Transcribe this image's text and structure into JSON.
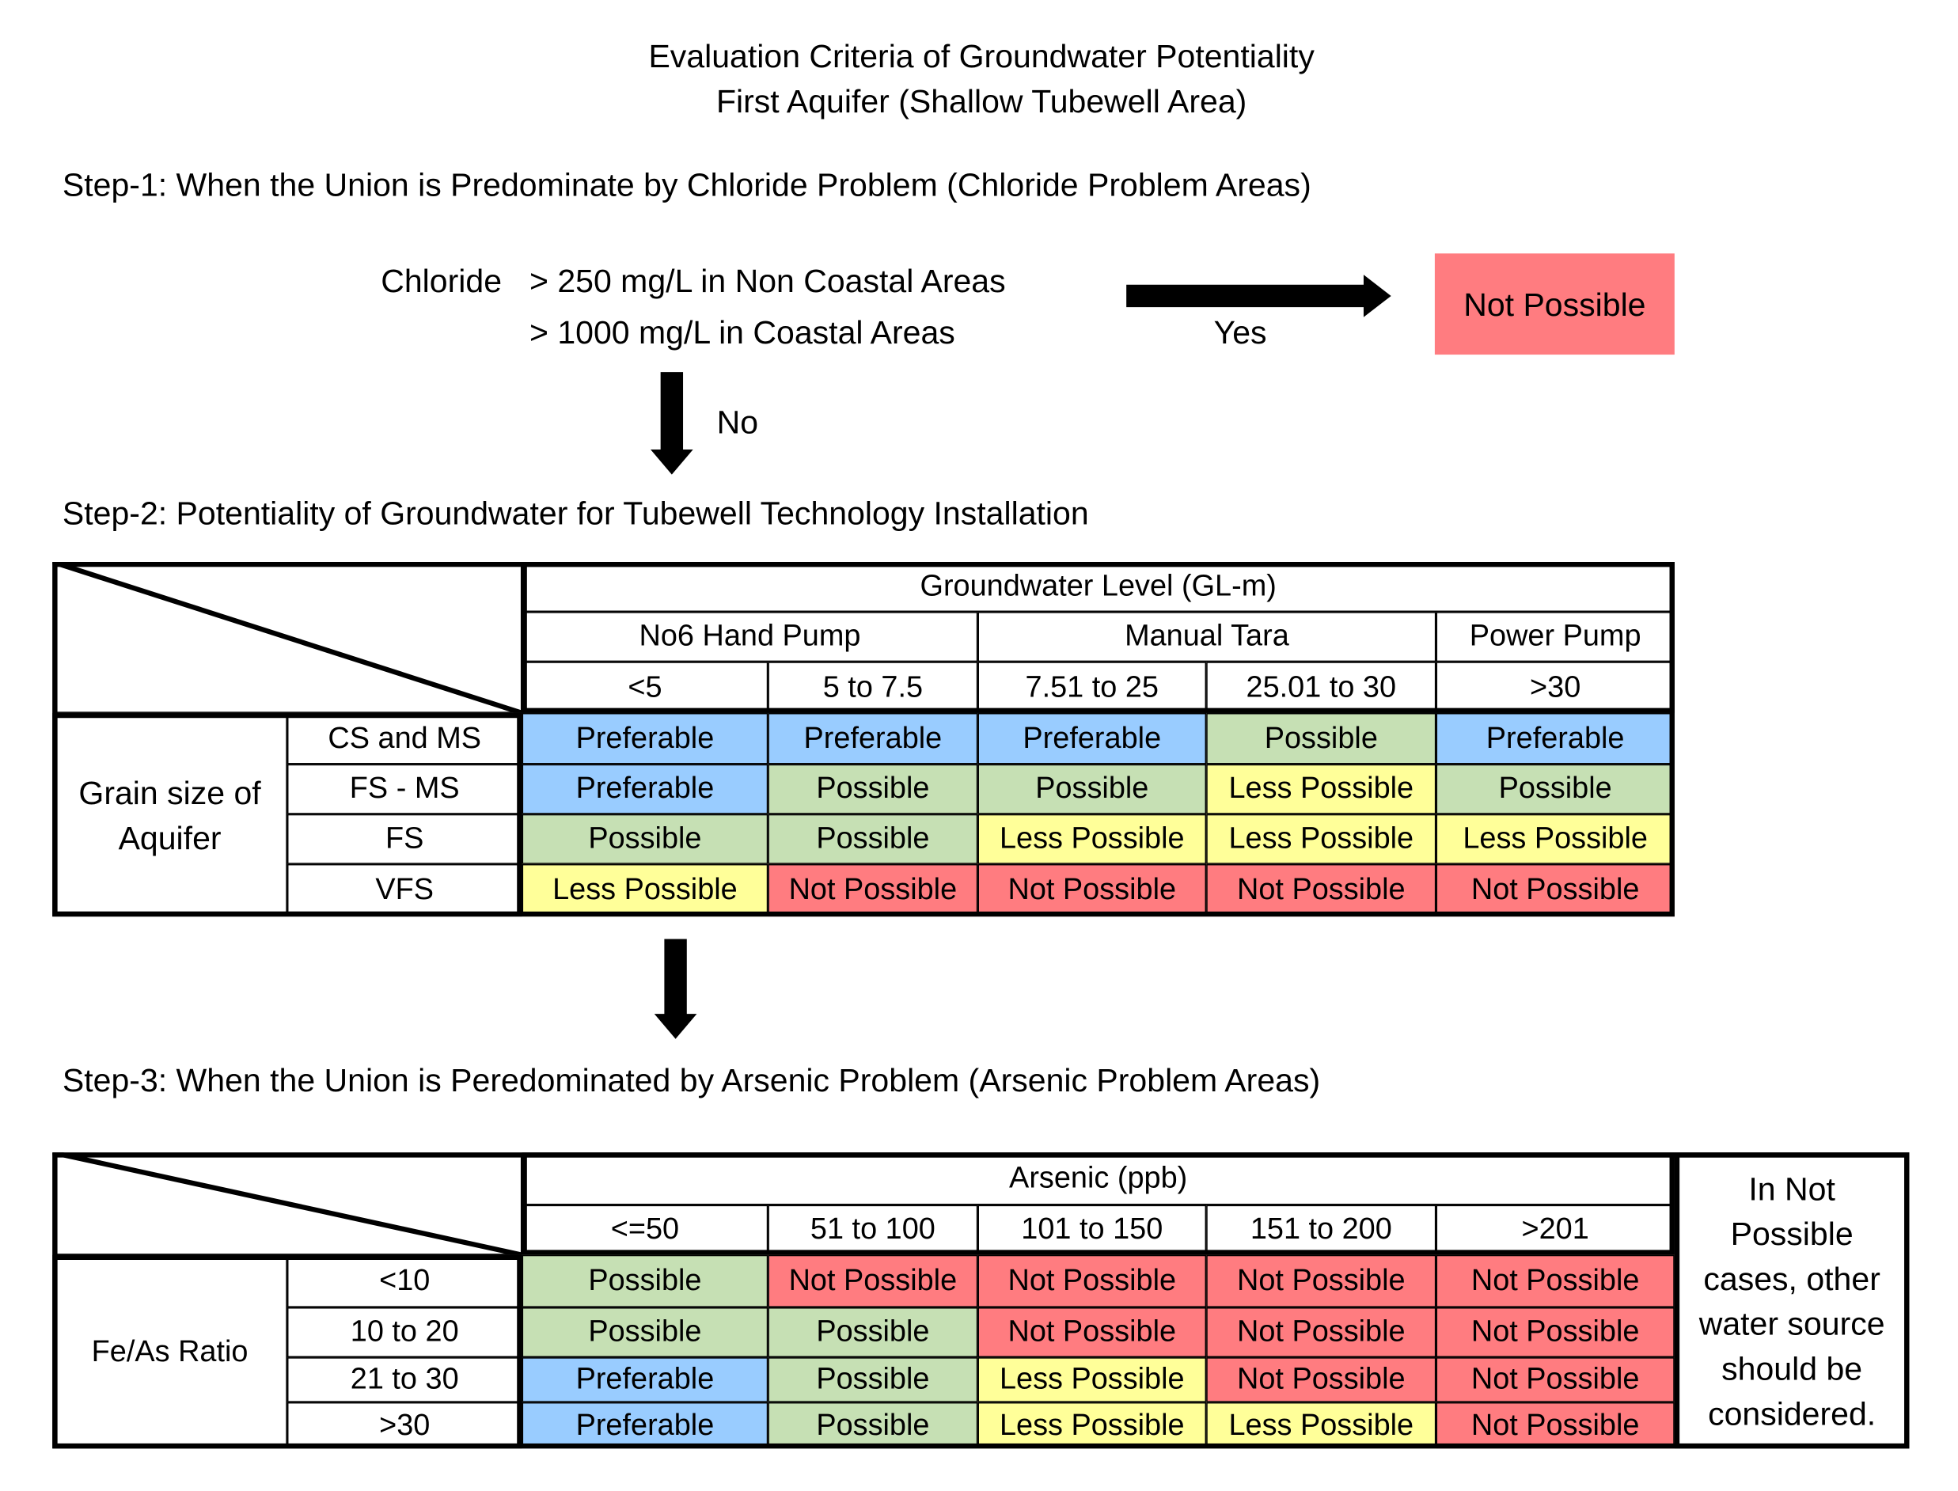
{
  "title": {
    "line1": "Evaluation Criteria of Groundwater Potentiality",
    "line2": "First Aquifer (Shallow Tubewell Area)"
  },
  "colors": {
    "Preferable": "#99ccff",
    "Possible": "#c6e0b4",
    "Less Possible": "#ffff99",
    "Not Possible": "#ff7c80"
  },
  "step1": {
    "heading": "Step-1: When the Union is Predominate by Chloride Problem (Chloride Problem Areas)",
    "label": "Chloride",
    "cond1": "> 250 mg/L in Non Coastal Areas",
    "cond2": "> 1000 mg/L in Coastal Areas",
    "yes": "Yes",
    "no": "No",
    "result": "Not Possible",
    "arrow_icons": [
      "arrow-right-icon",
      "arrow-down-icon"
    ]
  },
  "step2": {
    "heading": "Step-2: Potentiality of Groundwater for Tubewell Technology Installation",
    "header": "Groundwater Level (GL-m)",
    "groups": [
      "No6 Hand Pump",
      "Manual Tara",
      "Power Pump"
    ],
    "columns": [
      "<5",
      "5 to 7.5",
      "7.51 to 25",
      "25.01 to 30",
      ">30"
    ],
    "row_group": "Grain size of Aquifer",
    "rows": [
      {
        "label": "CS and MS",
        "cells": [
          "Preferable",
          "Preferable",
          "Preferable",
          "Possible",
          "Preferable"
        ]
      },
      {
        "label": "FS - MS",
        "cells": [
          "Preferable",
          "Possible",
          "Possible",
          "Less Possible",
          "Possible"
        ]
      },
      {
        "label": "FS",
        "cells": [
          "Possible",
          "Possible",
          "Less Possible",
          "Less Possible",
          "Less Possible"
        ]
      },
      {
        "label": "VFS",
        "cells": [
          "Less Possible",
          "Not Possible",
          "Not Possible",
          "Not Possible",
          "Not Possible"
        ]
      }
    ]
  },
  "step3": {
    "heading": "Step-3: When the Union is Peredominated by Arsenic Problem (Arsenic Problem Areas)",
    "header": "Arsenic (ppb)",
    "columns": [
      "<=50",
      "51 to 100",
      "101 to 150",
      "151 to 200",
      ">201"
    ],
    "row_group": "Fe/As Ratio",
    "note": "In Not Possible cases, other water source should be considered.",
    "rows": [
      {
        "label": "<10",
        "cells": [
          "Possible",
          "Not Possible",
          "Not Possible",
          "Not Possible",
          "Not Possible"
        ]
      },
      {
        "label": "10 to 20",
        "cells": [
          "Possible",
          "Possible",
          "Not Possible",
          "Not Possible",
          "Not Possible"
        ]
      },
      {
        "label": "21 to 30",
        "cells": [
          "Preferable",
          "Possible",
          "Less Possible",
          "Not Possible",
          "Not Possible"
        ]
      },
      {
        "label": ">30",
        "cells": [
          "Preferable",
          "Possible",
          "Less Possible",
          "Less Possible",
          "Not Possible"
        ]
      }
    ]
  }
}
